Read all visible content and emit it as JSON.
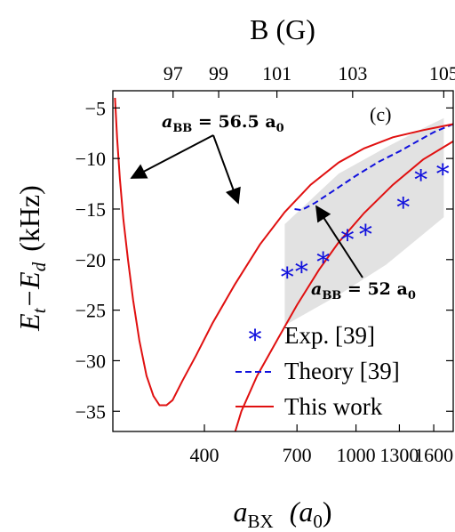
{
  "chart_data": {
    "type": "line",
    "panel_label": "(c)",
    "x_axis": {
      "title_main": "a",
      "title_sub": "BX",
      "title_unit": "(a",
      "title_unit_sub": "0",
      "title_unit_close": ")",
      "scale": "log",
      "range": [
        230,
        1800
      ],
      "ticks": [
        {
          "value": 400,
          "label": "400"
        },
        {
          "value": 700,
          "label": "700"
        },
        {
          "value": 1000,
          "label": "1000"
        },
        {
          "value": 1300,
          "label": "1300"
        },
        {
          "value": 1600,
          "label": "1600"
        }
      ]
    },
    "x2_axis": {
      "title": "B  (G)",
      "ticks": [
        {
          "value": 331,
          "label": "97"
        },
        {
          "value": 436,
          "label": "99"
        },
        {
          "value": 620,
          "label": "101"
        },
        {
          "value": 980,
          "label": "103"
        },
        {
          "value": 1700,
          "label": "105"
        }
      ]
    },
    "y_axis": {
      "title_main": "E",
      "title_sub1": "t",
      "title_minus": "−E",
      "title_sub2": "d",
      "title_unit": "(kHz)",
      "range": [
        -37,
        -3.3
      ],
      "ticks": [
        {
          "value": -5,
          "label": "−5"
        },
        {
          "value": -10,
          "label": "−10"
        },
        {
          "value": -15,
          "label": "−15"
        },
        {
          "value": -20,
          "label": "−20"
        },
        {
          "value": -25,
          "label": "−25"
        },
        {
          "value": -30,
          "label": "−30"
        },
        {
          "value": -35,
          "label": "−35"
        }
      ]
    },
    "uncertainty_band": {
      "color": "#e2e2e2",
      "upper": [
        [
          650,
          -16.5
        ],
        [
          900,
          -11.5
        ],
        [
          1200,
          -8.9
        ],
        [
          1500,
          -7.0
        ],
        [
          1700,
          -6.0
        ]
      ],
      "lower": [
        [
          650,
          -26.5
        ],
        [
          900,
          -23.5
        ],
        [
          1200,
          -20.5
        ],
        [
          1500,
          -17.5
        ],
        [
          1700,
          -15.8
        ]
      ]
    },
    "series": [
      {
        "name": "Exp. [39]",
        "kind": "scatter",
        "marker": "*",
        "color": "#1010dd",
        "points": [
          [
            660,
            -21.5
          ],
          [
            720,
            -21.0
          ],
          [
            820,
            -20.0
          ],
          [
            950,
            -17.8
          ],
          [
            1060,
            -17.3
          ],
          [
            1330,
            -14.6
          ],
          [
            1480,
            -11.9
          ],
          [
            1690,
            -11.3
          ]
        ]
      },
      {
        "name": "Theory [39]",
        "kind": "dashed",
        "color": "#1010dd",
        "points": [
          [
            690,
            -15.0
          ],
          [
            720,
            -15.1
          ],
          [
            780,
            -14.4
          ],
          [
            880,
            -13.1
          ],
          [
            1000,
            -11.7
          ],
          [
            1150,
            -10.3
          ],
          [
            1300,
            -9.3
          ],
          [
            1450,
            -8.3
          ],
          [
            1600,
            -7.4
          ],
          [
            1800,
            -6.6
          ]
        ]
      },
      {
        "name": "This work",
        "kind": "solid",
        "color": "#e01010",
        "segments": [
          [
            [
              233,
              -4.0
            ],
            [
              236,
              -8.0
            ],
            [
              240,
              -12.0
            ],
            [
              245,
              -16.0
            ],
            [
              252,
              -20.0
            ],
            [
              260,
              -24.0
            ],
            [
              270,
              -28.0
            ],
            [
              282,
              -31.5
            ],
            [
              294,
              -33.5
            ],
            [
              305,
              -34.4
            ],
            [
              318,
              -34.4
            ],
            [
              330,
              -33.9
            ],
            [
              350,
              -32.0
            ],
            [
              380,
              -29.5
            ],
            [
              420,
              -26.3
            ],
            [
              480,
              -22.5
            ],
            [
              560,
              -18.5
            ],
            [
              650,
              -15.3
            ],
            [
              760,
              -12.6
            ],
            [
              900,
              -10.4
            ],
            [
              1050,
              -9.0
            ],
            [
              1250,
              -7.9
            ],
            [
              1500,
              -7.2
            ],
            [
              1800,
              -6.6
            ]
          ],
          [
            [
              482,
              -37.0
            ],
            [
              500,
              -35.0
            ],
            [
              550,
              -31.5
            ],
            [
              620,
              -28.0
            ],
            [
              700,
              -24.5
            ],
            [
              800,
              -21.0
            ],
            [
              900,
              -18.3
            ],
            [
              1050,
              -15.4
            ],
            [
              1250,
              -12.6
            ],
            [
              1500,
              -10.1
            ],
            [
              1800,
              -8.3
            ]
          ]
        ]
      }
    ],
    "legend": {
      "placement": "bottom-right",
      "entries": [
        {
          "label": "Exp. [39]",
          "symbol": "star",
          "color": "#1010dd"
        },
        {
          "label": "Theory [39]",
          "symbol": "dashed",
          "color": "#1010dd"
        },
        {
          "label": "This work",
          "symbol": "solid",
          "color": "#e01010"
        }
      ]
    },
    "annotations": [
      {
        "text": "a",
        "sub": "BB",
        "rest": " = 56.5 a",
        "sub2": "0"
      },
      {
        "text": "a",
        "sub": "BB",
        "rest": " = 52 a",
        "sub2": "0"
      }
    ]
  }
}
